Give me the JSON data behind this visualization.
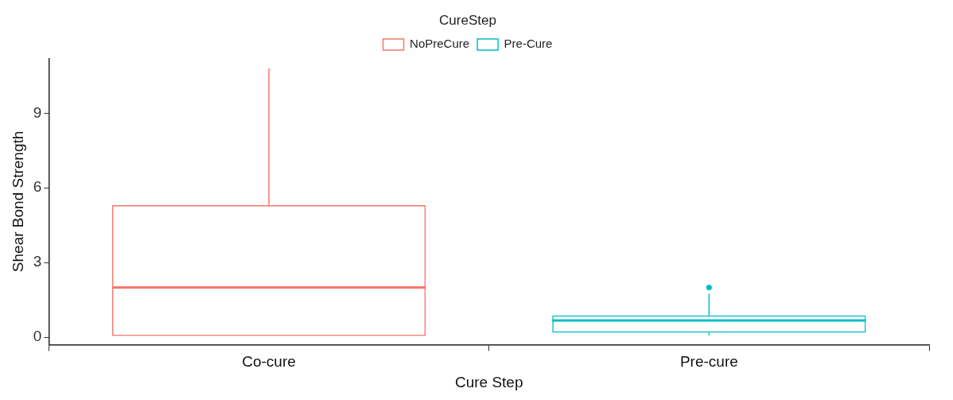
{
  "chart_data": {
    "type": "box",
    "xlabel": "Cure Step",
    "ylabel": "Shear Bond Strength",
    "legend_title": "CureStep",
    "legend": "top",
    "grid": false,
    "categories": [
      "Co-cure",
      "Pre-cure"
    ],
    "ylim": [
      -0.3,
      11.2
    ],
    "yticks": [
      0,
      3,
      6,
      9
    ],
    "series": [
      {
        "name": "NoPreCure",
        "color": "#f8766d",
        "boxes": [
          {
            "low": 0.05,
            "q1": 0.05,
            "median": 2.0,
            "q3": 5.3,
            "high": 10.8
          },
          null
        ]
      },
      {
        "name": "Pre-Cure",
        "color": "#00bfc4",
        "boxes": [
          null,
          {
            "low": 0.07,
            "q1": 0.18,
            "median": 0.67,
            "q3": 0.88,
            "high": 1.75,
            "outliers": [
              2.0
            ]
          }
        ]
      }
    ]
  }
}
